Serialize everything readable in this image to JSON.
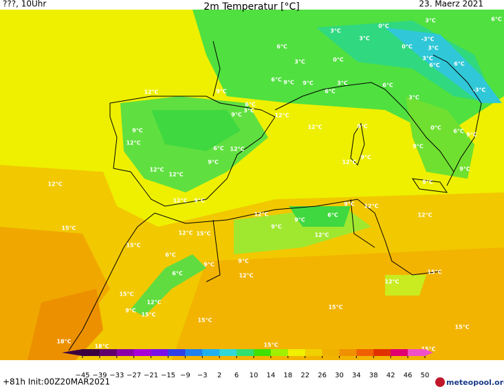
{
  "header": {
    "left": "???, 10Uhr",
    "title": "2m Temperatur [°C]",
    "date": "23. Maerz 2021"
  },
  "footer": {
    "run": "+81h Init:00Z20MAR2021",
    "brand": "meteopool.org"
  },
  "colorbar": {
    "ticks": [
      {
        "value": -45,
        "label": "−45"
      },
      {
        "value": -39,
        "label": "−39"
      },
      {
        "value": -33,
        "label": "−33"
      },
      {
        "value": -27,
        "label": "−27"
      },
      {
        "value": -21,
        "label": "−21"
      },
      {
        "value": -15,
        "label": "−15"
      },
      {
        "value": -9,
        "label": "−9"
      },
      {
        "value": -3,
        "label": "−3"
      },
      2,
      6,
      10,
      14,
      18,
      22,
      26,
      30,
      34,
      38,
      42,
      46,
      50
    ],
    "colors": [
      "#3a0040",
      "#60006a",
      "#8a00a8",
      "#a800d8",
      "#7a10e8",
      "#3040e8",
      "#2080f0",
      "#20b0f0",
      "#30d8d8",
      "#30e070",
      "#40e000",
      "#a0f000",
      "#f0f000",
      "#f0d000",
      "#f0b000",
      "#f09000",
      "#f06000",
      "#e03000",
      "#e00070",
      "#f050c8"
    ]
  },
  "labels": [
    "3°C",
    "6°C",
    "3°C",
    "0°C",
    "3°C",
    "-3°C",
    "6°C",
    "0°C",
    "3°C",
    "3°C",
    "0°C",
    "3°C",
    "6°C",
    "6°C",
    "6°C",
    "9°C",
    "9°C",
    "3°C",
    "6°C",
    "6°C",
    "-3°C",
    "12°C",
    "9°C",
    "3°C",
    "6°C",
    "3°C",
    "9°C",
    "12°C",
    "9°C",
    "12°C",
    "9°C",
    "0°C",
    "6°C",
    "9°C",
    "12°C",
    "6°C",
    "12°C",
    "9°C",
    "9°C",
    "12°C",
    "9°C",
    "12°C",
    "12°C",
    "9°C",
    "12°C",
    "9°C",
    "12°C",
    "9°C",
    "9°C",
    "12°C",
    "12°C",
    "6°C",
    "12°C",
    "15°C",
    "9°C",
    "9°C",
    "12°C",
    "15°C",
    "12°C",
    "15°C",
    "6°C",
    "9°C",
    "9°C",
    "6°C",
    "12°C",
    "15°C",
    "12°C",
    "15°C",
    "12°C",
    "9°C",
    "15°C",
    "15°C",
    "15°C",
    "15°C",
    "18°C",
    "18°C",
    "15°C",
    "15°C"
  ]
}
